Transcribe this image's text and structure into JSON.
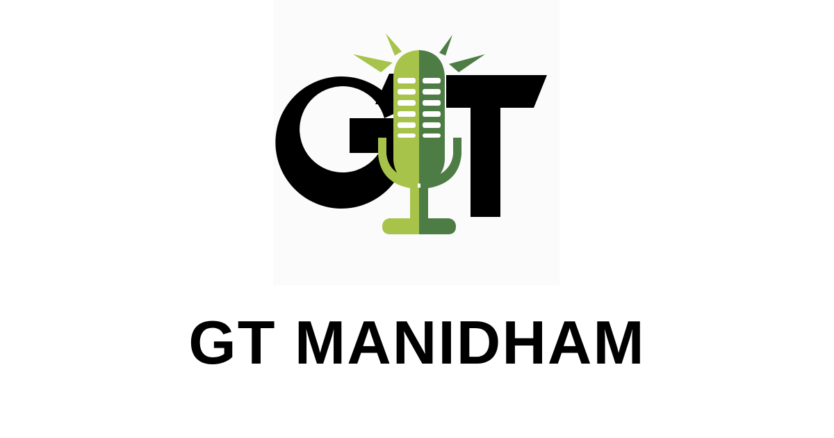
{
  "brand": {
    "name": "GT MANIDHAM",
    "logo_icon": "gt-microphone-logo",
    "logo_letters": "GT"
  },
  "colors": {
    "background": "#ffffff",
    "letters": "#000000",
    "green_dark": "#4e7c45",
    "green_light": "#a7c34a",
    "panel": "#fbfbfb"
  }
}
